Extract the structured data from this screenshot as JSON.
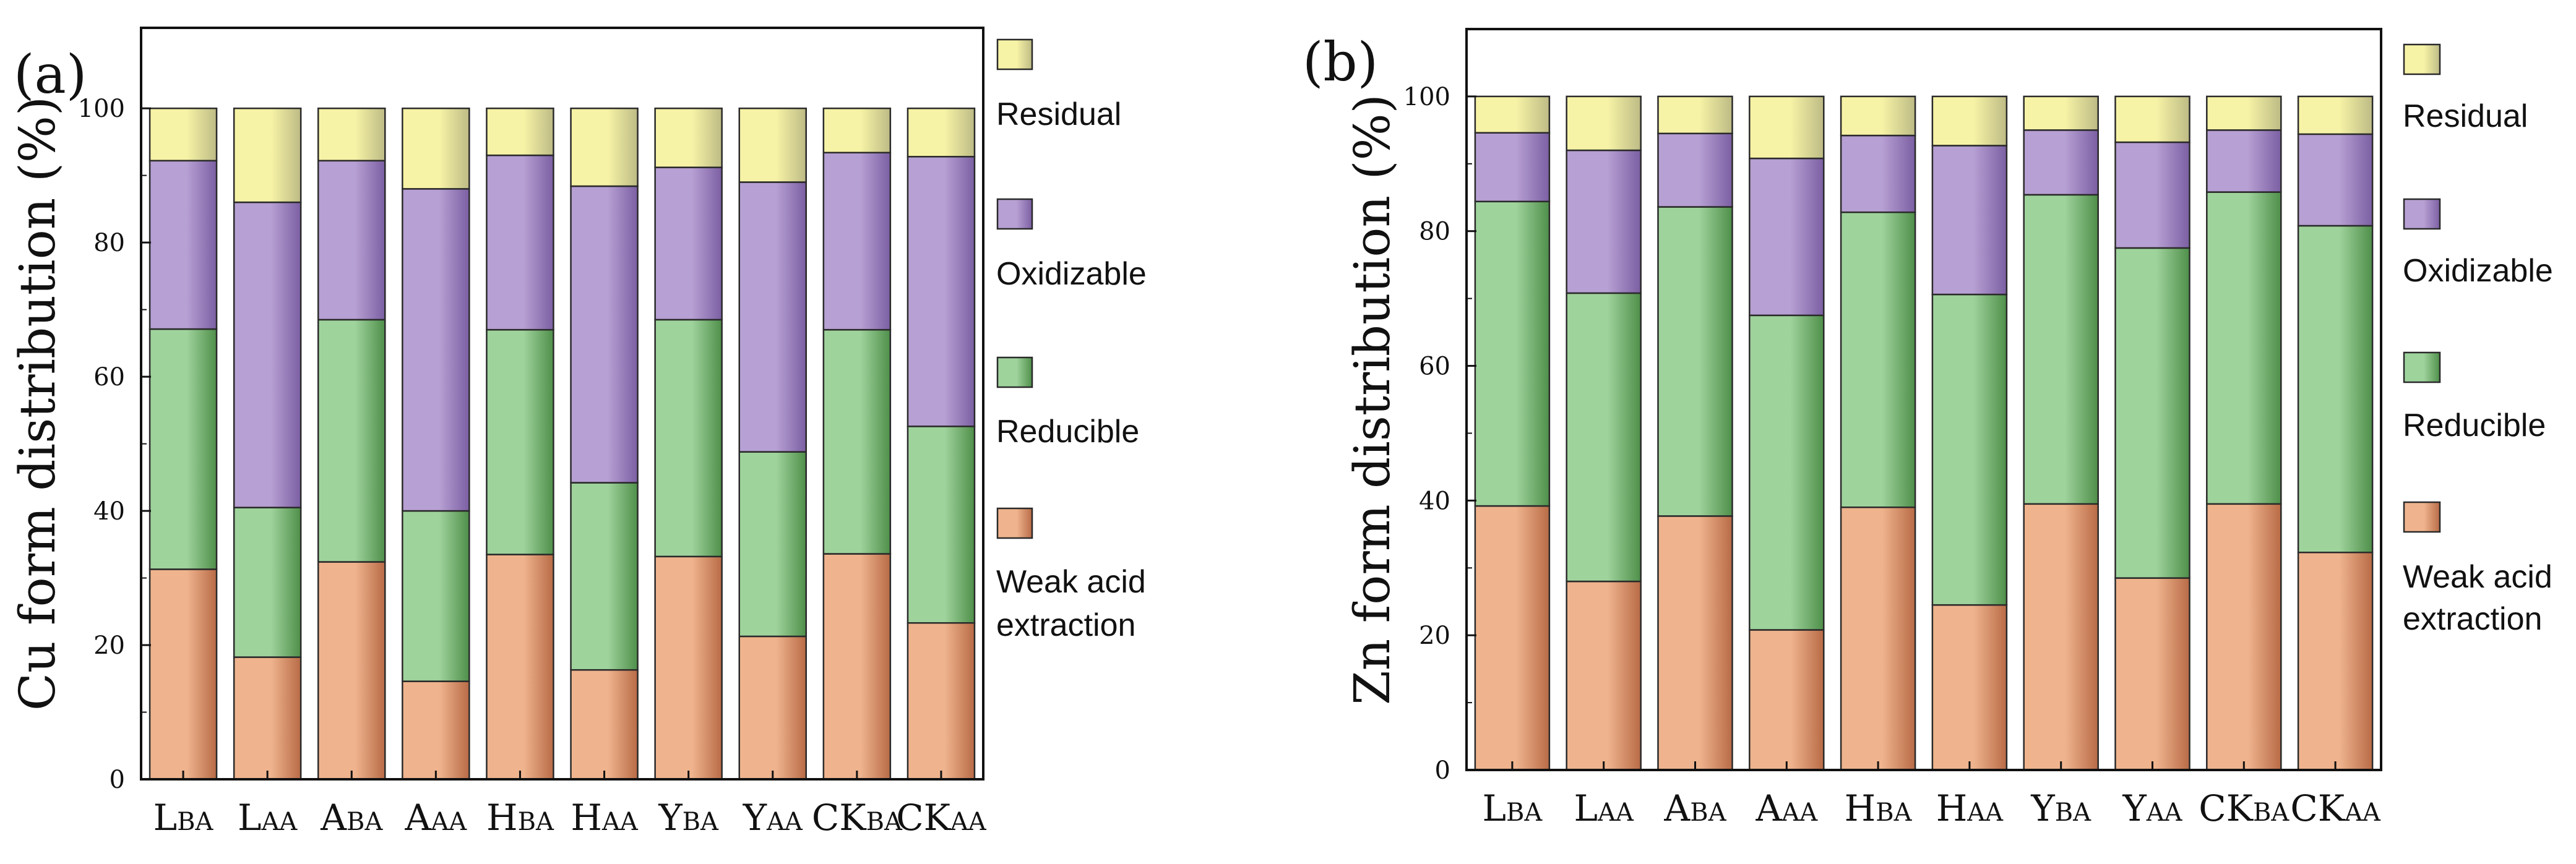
{
  "colors": {
    "weak": "#efb48e",
    "weak_dark": "#b86b46",
    "reducible": "#9fd39c",
    "reducible_dark": "#4f8f4a",
    "oxidizable": "#b7a0d3",
    "oxidizable_dark": "#7b5fa3",
    "residual": "#f7f3a6",
    "residual_dark": "#bdbb85",
    "edge": "#2a2a2a"
  },
  "categories": [
    {
      "main": "L",
      "sub": "BA"
    },
    {
      "main": "L",
      "sub": "AA"
    },
    {
      "main": "A",
      "sub": "BA"
    },
    {
      "main": "A",
      "sub": "AA"
    },
    {
      "main": "H",
      "sub": "BA"
    },
    {
      "main": "H",
      "sub": "AA"
    },
    {
      "main": "Y",
      "sub": "BA"
    },
    {
      "main": "Y",
      "sub": "AA"
    },
    {
      "main": "CK",
      "sub": "BA"
    },
    {
      "main": "CK",
      "sub": "AA"
    }
  ],
  "legend": [
    {
      "key": "residual",
      "line1": "Residual",
      "line2": ""
    },
    {
      "key": "oxidizable",
      "line1": "Oxidizable",
      "line2": ""
    },
    {
      "key": "reducible",
      "line1": "Reducible",
      "line2": ""
    },
    {
      "key": "weak",
      "line1": "Weak acid",
      "line2": "extraction"
    }
  ],
  "chart_data": [
    {
      "type": "bar",
      "stacked": true,
      "panel_label": "(a)",
      "title": "",
      "xlabel": "",
      "ylabel": "Cu form distribution (%)",
      "ylim": [
        0,
        112
      ],
      "yticks": [
        0,
        20,
        40,
        60,
        80,
        100
      ],
      "series": [
        {
          "name": "Weak acid extraction",
          "key": "weak",
          "values": [
            31.3,
            18.2,
            32.4,
            14.6,
            33.5,
            16.3,
            33.2,
            21.3,
            33.6,
            23.3
          ]
        },
        {
          "name": "Reducible",
          "key": "reducible",
          "values": [
            35.8,
            22.3,
            36.1,
            25.4,
            33.5,
            27.9,
            35.3,
            27.5,
            33.4,
            29.3
          ]
        },
        {
          "name": "Oxidizable",
          "key": "oxidizable",
          "values": [
            25.1,
            45.5,
            23.7,
            48.0,
            26.0,
            44.2,
            22.7,
            40.2,
            26.4,
            40.2
          ]
        },
        {
          "name": "Residual",
          "key": "residual",
          "values": [
            7.8,
            14.0,
            7.8,
            12.0,
            7.0,
            11.6,
            8.8,
            11.0,
            6.6,
            7.2
          ]
        }
      ]
    },
    {
      "type": "bar",
      "stacked": true,
      "panel_label": "(b)",
      "title": "",
      "xlabel": "",
      "ylabel": "Zn form distribution (%)",
      "ylim": [
        0,
        110
      ],
      "yticks": [
        0,
        20,
        40,
        60,
        80,
        100
      ],
      "series": [
        {
          "name": "Weak acid extraction",
          "key": "weak",
          "values": [
            39.2,
            28.0,
            37.7,
            20.8,
            39.0,
            24.5,
            39.5,
            28.5,
            39.5,
            32.3
          ]
        },
        {
          "name": "Reducible",
          "key": "reducible",
          "values": [
            45.2,
            42.8,
            45.9,
            46.7,
            43.8,
            46.1,
            45.9,
            49.0,
            46.3,
            48.5
          ]
        },
        {
          "name": "Oxidizable",
          "key": "oxidizable",
          "values": [
            10.2,
            21.2,
            10.9,
            23.3,
            11.4,
            22.1,
            9.6,
            15.7,
            9.2,
            13.6
          ]
        },
        {
          "name": "Residual",
          "key": "residual",
          "values": [
            5.4,
            8.0,
            5.5,
            9.2,
            5.8,
            7.3,
            5.0,
            6.8,
            5.0,
            5.6
          ]
        }
      ]
    }
  ]
}
